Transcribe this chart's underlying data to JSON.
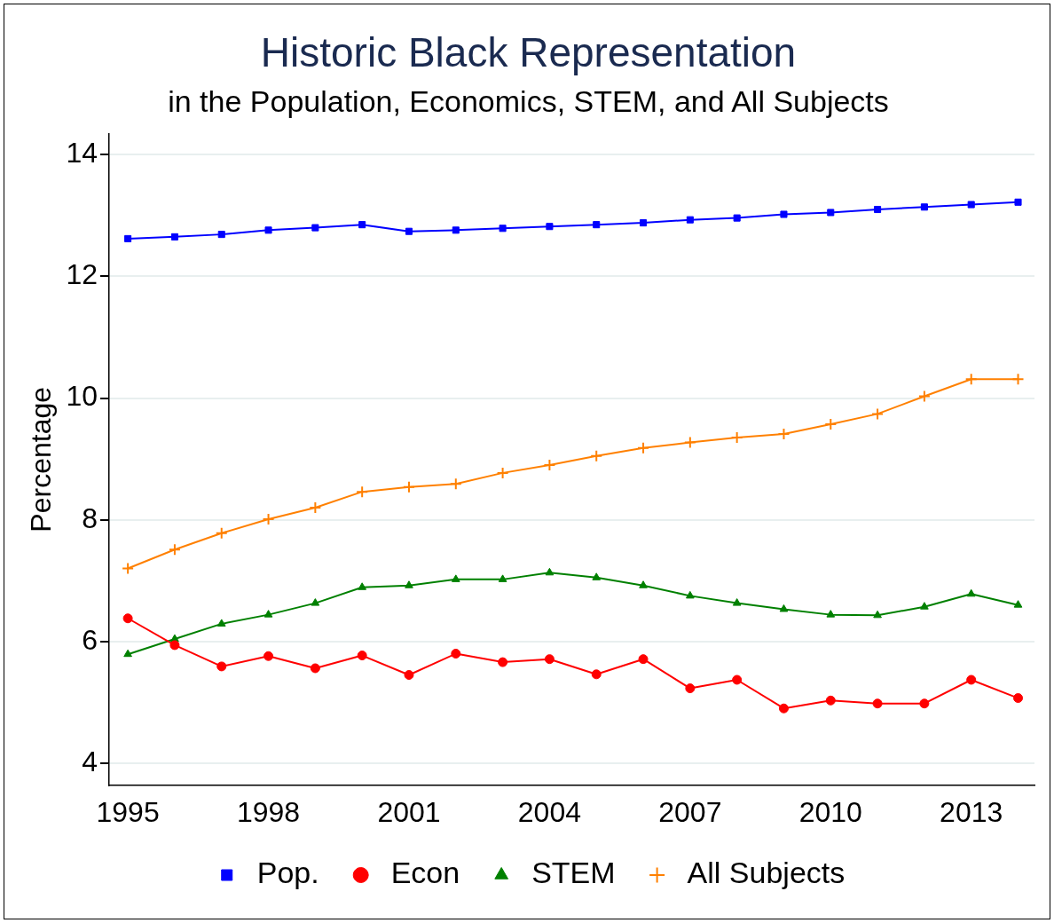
{
  "chart_data": {
    "type": "line",
    "title": "Historic Black Representation",
    "subtitle": "in the Population, Economics, STEM, and All Subjects",
    "ylabel": "Percentage",
    "x": [
      1995,
      1996,
      1997,
      1998,
      1999,
      2000,
      2001,
      2002,
      2003,
      2004,
      2005,
      2006,
      2007,
      2008,
      2009,
      2010,
      2011,
      2012,
      2013,
      2014
    ],
    "series": [
      {
        "name": "Pop.",
        "color": "#0000ff",
        "marker": "square",
        "values": [
          12.62,
          12.65,
          12.69,
          12.76,
          12.8,
          12.85,
          12.74,
          12.76,
          12.79,
          12.82,
          12.85,
          12.88,
          12.93,
          12.96,
          13.02,
          13.05,
          13.1,
          13.14,
          13.18,
          13.22
        ]
      },
      {
        "name": "Econ",
        "color": "#ff0000",
        "marker": "circle",
        "values": [
          6.38,
          5.94,
          5.59,
          5.76,
          5.56,
          5.77,
          5.45,
          5.8,
          5.66,
          5.71,
          5.46,
          5.71,
          5.23,
          5.37,
          4.9,
          5.03,
          4.98,
          4.98,
          5.37,
          5.07
        ]
      },
      {
        "name": "STEM",
        "color": "#008000",
        "marker": "triangle",
        "values": [
          5.79,
          6.04,
          6.29,
          6.44,
          6.63,
          6.89,
          6.92,
          7.02,
          7.02,
          7.13,
          7.05,
          6.92,
          6.75,
          6.63,
          6.53,
          6.44,
          6.43,
          6.57,
          6.78,
          6.6
        ]
      },
      {
        "name": "All Subjects",
        "color": "#ff8000",
        "marker": "cross",
        "values": [
          7.2,
          7.51,
          7.78,
          8.01,
          8.2,
          8.46,
          8.54,
          8.59,
          8.77,
          8.9,
          9.05,
          9.18,
          9.27,
          9.35,
          9.41,
          9.57,
          9.74,
          10.03,
          10.31,
          10.31
        ]
      }
    ],
    "xlim": [
      1994.6,
      2014.35
    ],
    "xticks": [
      1995,
      1998,
      2001,
      2004,
      2007,
      2010,
      2013
    ],
    "ylim": [
      3.64,
      14.34
    ],
    "yticks": [
      4,
      6,
      8,
      10,
      12,
      14
    ],
    "grid": "y",
    "legend": "bottom",
    "line_style": "solid"
  }
}
